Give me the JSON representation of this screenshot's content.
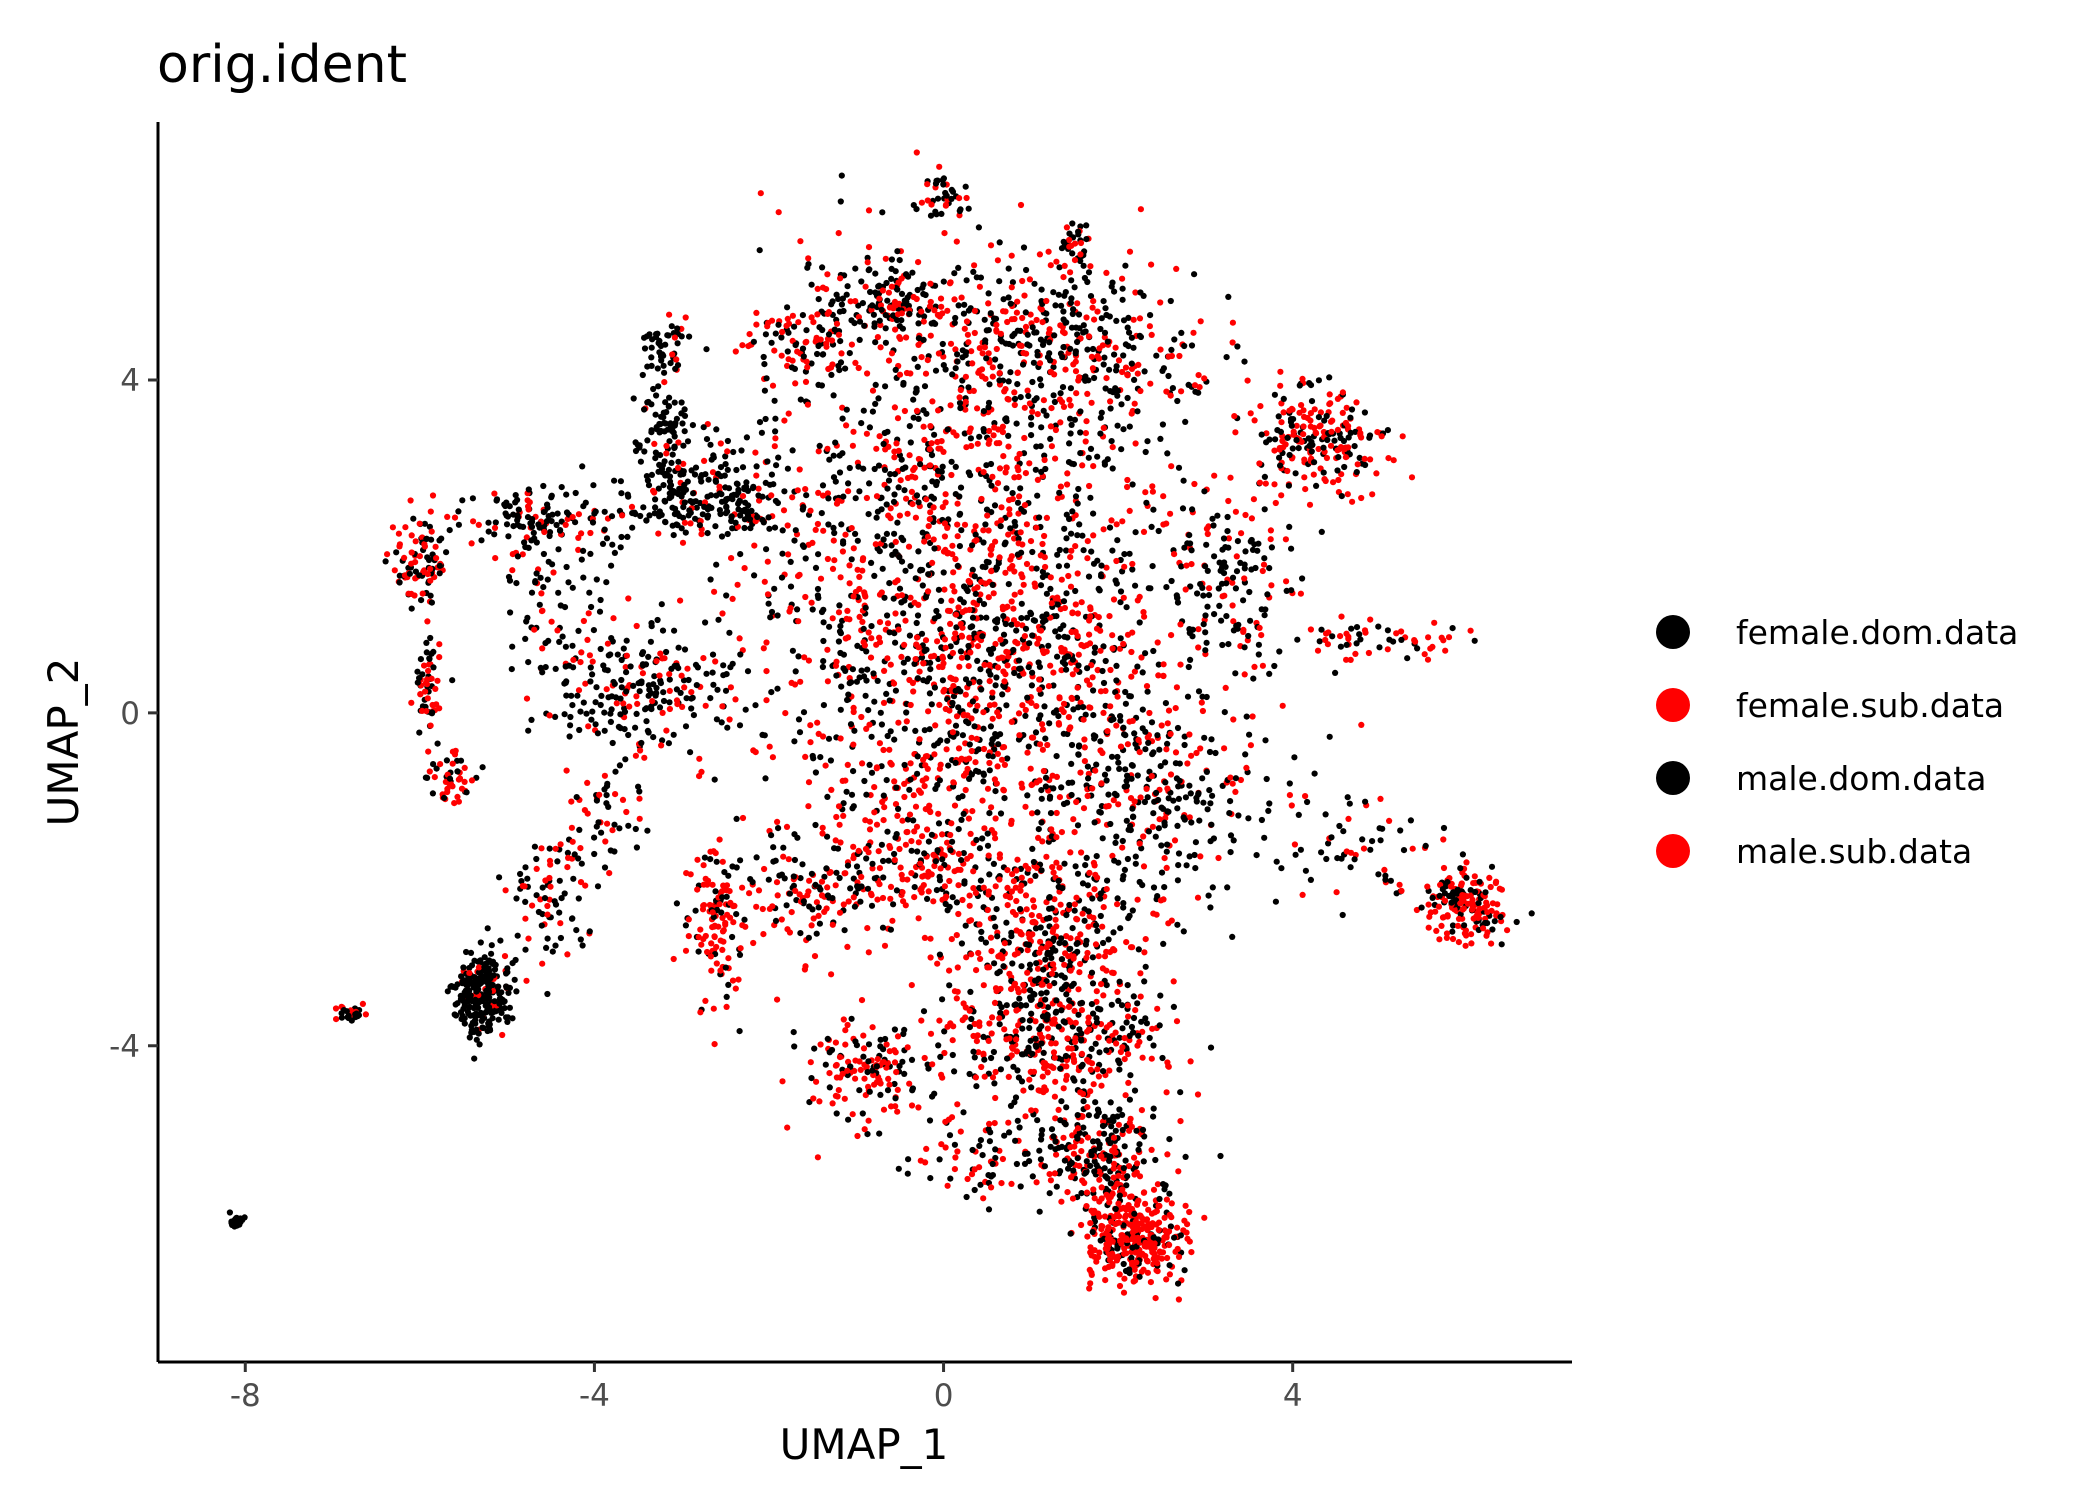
{
  "chart_data": {
    "type": "scatter",
    "title": "orig.ident",
    "xlabel": "UMAP_1",
    "ylabel": "UMAP_2",
    "xlim": [
      -9,
      7.2
    ],
    "ylim": [
      -7.8,
      7.1
    ],
    "xticks": [
      -8,
      -4,
      0,
      4
    ],
    "yticks": [
      -4,
      0,
      4
    ],
    "grid": false,
    "legend_position": "right",
    "series": [
      {
        "name": "female.dom.data",
        "color": "#000000"
      },
      {
        "name": "female.sub.data",
        "color": "#FF0000"
      },
      {
        "name": "male.dom.data",
        "color": "#000000"
      },
      {
        "name": "male.sub.data",
        "color": "#FF0000"
      }
    ],
    "clusters": [
      {
        "x": 0.0,
        "y": 2.3,
        "sx": 1.8,
        "sy": 1.9,
        "n": 1100,
        "red": 0.45
      },
      {
        "x": 0.5,
        "y": 0.3,
        "sx": 1.7,
        "sy": 1.4,
        "n": 900,
        "red": 0.55
      },
      {
        "x": 1.2,
        "y": 4.4,
        "sx": 1.2,
        "sy": 0.7,
        "n": 420,
        "red": 0.4
      },
      {
        "x": -0.6,
        "y": 5.0,
        "sx": 0.45,
        "sy": 0.35,
        "n": 140,
        "red": 0.3
      },
      {
        "x": 0.0,
        "y": 6.2,
        "sx": 0.25,
        "sy": 0.2,
        "n": 40,
        "red": 0.25
      },
      {
        "x": 1.5,
        "y": 5.6,
        "sx": 0.1,
        "sy": 0.2,
        "n": 30,
        "red": 0.6
      },
      {
        "x": -1.7,
        "y": 4.5,
        "sx": 0.5,
        "sy": 0.3,
        "n": 90,
        "red": 0.55
      },
      {
        "x": -3.2,
        "y": 4.4,
        "sx": 0.2,
        "sy": 0.25,
        "n": 50,
        "red": 0.2
      },
      {
        "x": -3.2,
        "y": 3.5,
        "sx": 0.25,
        "sy": 0.3,
        "n": 60,
        "red": 0.1
      },
      {
        "x": -2.8,
        "y": 2.6,
        "sx": 0.7,
        "sy": 0.4,
        "n": 240,
        "red": 0.1
      },
      {
        "x": -4.7,
        "y": 2.3,
        "sx": 0.6,
        "sy": 0.25,
        "n": 130,
        "red": 0.3
      },
      {
        "x": -6.0,
        "y": 1.8,
        "sx": 0.2,
        "sy": 0.35,
        "n": 90,
        "red": 0.55
      },
      {
        "x": -5.9,
        "y": 0.3,
        "sx": 0.12,
        "sy": 0.45,
        "n": 60,
        "red": 0.45
      },
      {
        "x": -5.6,
        "y": -0.8,
        "sx": 0.18,
        "sy": 0.2,
        "n": 45,
        "red": 0.6
      },
      {
        "x": -3.6,
        "y": 0.3,
        "sx": 0.7,
        "sy": 0.5,
        "n": 220,
        "red": 0.25
      },
      {
        "x": -4.5,
        "y": 1.3,
        "sx": 0.4,
        "sy": 0.6,
        "n": 70,
        "red": 0.3
      },
      {
        "x": 4.3,
        "y": 3.3,
        "sx": 0.5,
        "sy": 0.45,
        "n": 220,
        "red": 0.6
      },
      {
        "x": 3.3,
        "y": 1.5,
        "sx": 0.5,
        "sy": 0.8,
        "n": 140,
        "red": 0.35
      },
      {
        "x": 4.9,
        "y": 0.9,
        "sx": 0.8,
        "sy": 0.15,
        "n": 60,
        "red": 0.6
      },
      {
        "x": 2.4,
        "y": -1.1,
        "sx": 0.8,
        "sy": 0.8,
        "n": 260,
        "red": 0.3
      },
      {
        "x": 6.0,
        "y": -2.3,
        "sx": 0.35,
        "sy": 0.3,
        "n": 170,
        "red": 0.6
      },
      {
        "x": 4.8,
        "y": -1.6,
        "sx": 0.7,
        "sy": 0.5,
        "n": 60,
        "red": 0.35
      },
      {
        "x": -2.6,
        "y": -2.5,
        "sx": 0.25,
        "sy": 0.6,
        "n": 130,
        "red": 0.75
      },
      {
        "x": -1.4,
        "y": -2.2,
        "sx": 0.6,
        "sy": 0.5,
        "n": 120,
        "red": 0.55
      },
      {
        "x": -0.3,
        "y": -1.8,
        "sx": 0.9,
        "sy": 0.5,
        "n": 210,
        "red": 0.55
      },
      {
        "x": 1.2,
        "y": -2.7,
        "sx": 0.8,
        "sy": 0.7,
        "n": 380,
        "red": 0.55
      },
      {
        "x": 1.3,
        "y": -3.9,
        "sx": 0.9,
        "sy": 0.55,
        "n": 380,
        "red": 0.5
      },
      {
        "x": -0.9,
        "y": -4.3,
        "sx": 0.6,
        "sy": 0.4,
        "n": 150,
        "red": 0.6
      },
      {
        "x": 1.8,
        "y": -5.3,
        "sx": 0.55,
        "sy": 0.45,
        "n": 260,
        "red": 0.45
      },
      {
        "x": 2.2,
        "y": -6.3,
        "sx": 0.35,
        "sy": 0.35,
        "n": 330,
        "red": 0.8
      },
      {
        "x": 0.5,
        "y": -5.3,
        "sx": 0.6,
        "sy": 0.35,
        "n": 80,
        "red": 0.45
      },
      {
        "x": -5.3,
        "y": -3.4,
        "sx": 0.22,
        "sy": 0.35,
        "n": 260,
        "red": 0.1
      },
      {
        "x": -4.5,
        "y": -2.2,
        "sx": 0.35,
        "sy": 0.5,
        "n": 90,
        "red": 0.45
      },
      {
        "x": -3.8,
        "y": -1.2,
        "sx": 0.3,
        "sy": 0.35,
        "n": 40,
        "red": 0.4
      },
      {
        "x": -6.8,
        "y": -3.6,
        "sx": 0.15,
        "sy": 0.08,
        "n": 25,
        "red": 0.4
      },
      {
        "x": -8.1,
        "y": -6.1,
        "sx": 0.06,
        "sy": 0.05,
        "n": 30,
        "red": 0.0
      }
    ]
  }
}
